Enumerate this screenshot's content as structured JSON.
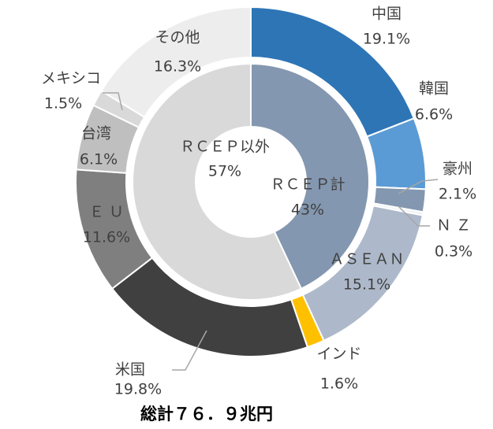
{
  "chart_data": {
    "type": "donut",
    "title": "総計７６．９兆円",
    "rings": [
      {
        "categories": [
          "中国",
          "韓国",
          "豪州",
          "Ｎ Ｚ",
          "ＡＳＥＡＮ",
          "インド",
          "米国",
          "Ｅ Ｕ",
          "台湾",
          "メキシコ",
          "その他"
        ],
        "values": [
          19.1,
          6.6,
          2.1,
          0.3,
          15.1,
          1.6,
          19.8,
          11.6,
          6.1,
          1.5,
          16.3
        ],
        "value_labels": [
          "19.1%",
          "6.6%",
          "2.1%",
          "0.3%",
          "15.1%",
          "1.6%",
          "19.8%",
          "11.6%",
          "6.1%",
          "1.5%",
          "16.3%"
        ],
        "colors": [
          "#2e75b6",
          "#5b9bd5",
          "#8497b0",
          "#eef1f6",
          "#adb9ca",
          "#ffc000",
          "#404040",
          "#7f7f7f",
          "#bfbfbf",
          "#d9d9d9",
          "#ededed"
        ]
      },
      {
        "categories": [
          "ＲＣＥＰ計",
          "ＲＣＥＰ以外"
        ],
        "values": [
          43,
          57
        ],
        "value_labels": [
          "43%",
          "57%"
        ],
        "colors": [
          "#8497b0",
          "#d9d9d9"
        ]
      }
    ]
  }
}
